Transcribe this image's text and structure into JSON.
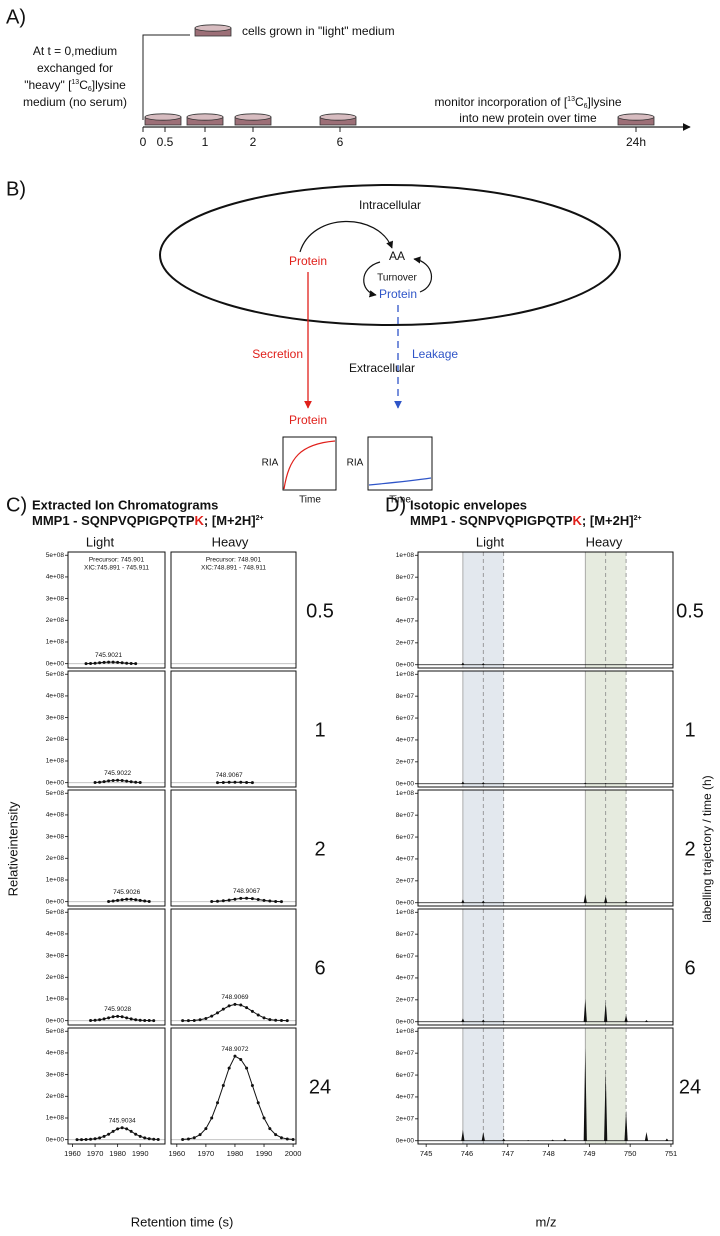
{
  "panel_a": {
    "label": "A)",
    "start_note": [
      "At t = 0,medium",
      "exchanged for"
    ],
    "start_note_heavy": [
      "\"heavy\" [",
      "13",
      "C",
      "6",
      "]lysine"
    ],
    "start_note_end": "medium (no serum)",
    "light_note": "cells grown in \"light\" medium",
    "monitor_note": [
      "monitor incorporation of [",
      "13",
      "C",
      "6",
      "]lysine"
    ],
    "monitor_note_end": "into new protein over time",
    "timepoints": [
      "0",
      "0.5",
      "1",
      "2",
      "6",
      "24h"
    ]
  },
  "panel_b": {
    "label": "B)",
    "intracellular": "Intracellular",
    "extracellular": "Extracellular",
    "protein_intra": "Protein",
    "aa": "AA",
    "turnover": "Turnover",
    "protein_synth": "Protein",
    "protein_extra": "Protein",
    "secretion": "Secretion",
    "leakage": "Leakage",
    "plots": [
      {
        "y": "RIA",
        "x": "Time"
      },
      {
        "y": "RIA",
        "x": "Time"
      }
    ]
  },
  "panel_c": {
    "label": "C)",
    "title": "Extracted Ion Chromatograms",
    "subtitle": [
      "MMP1 - SQNPVQPIGPQTP",
      "K",
      "; [M+2H]",
      "2+"
    ],
    "columns": [
      "Light",
      "Heavy"
    ],
    "rows": [
      "0.5",
      "1",
      "2",
      "6",
      "24"
    ],
    "ylabel": "Relativeintensity",
    "xlabel": "Retention time (s)"
  },
  "panel_d": {
    "label": "D)",
    "title": "Isotopic envelopes",
    "subtitle": [
      "MMP1 - SQNPVQPIGPQTP",
      "K",
      "; [M+2H]",
      "2+"
    ],
    "columns": [
      "Light",
      "Heavy"
    ],
    "rows": [
      "0.5",
      "1",
      "2",
      "6",
      "24"
    ],
    "xlabel": "m/z",
    "right_label": "labelling trajectory / time (h)"
  },
  "chart_data": [
    {
      "type": "line",
      "color": "#111111",
      "xlim": [
        1958,
        2001
      ],
      "ylim": [
        -20000000,
        515000000
      ],
      "yticks": [
        {
          "value": 0,
          "label": "0e+00"
        },
        {
          "value": 100000000,
          "label": "1e+08"
        },
        {
          "value": 200000000,
          "label": "2e+08"
        },
        {
          "value": 300000000,
          "label": "3e+08"
        },
        {
          "value": 400000000,
          "label": "4e+08"
        },
        {
          "value": 500000000,
          "label": "5e+08"
        }
      ],
      "annotations": [
        "Precursor: 745.901",
        "XIC:745.891 - 745.911"
      ],
      "peak_label": "745.9021",
      "x": [
        1966,
        1968,
        1970,
        1972,
        1974,
        1976,
        1978,
        1980,
        1982,
        1984,
        1986,
        1988
      ],
      "values": [
        0,
        1000000,
        2000000,
        4000000,
        6000000,
        7000000,
        7000000,
        6000000,
        4000000,
        2000000,
        1000000,
        0
      ]
    },
    {
      "type": "line",
      "color": "#111111",
      "xlim": [
        1958,
        2001
      ],
      "ylim": [
        -20000000,
        515000000
      ],
      "annotations": [
        "Precursor: 748.901",
        "XIC:748.891 - 748.911"
      ]
    },
    {
      "type": "line",
      "color": "#111111",
      "xlim": [
        1958,
        2001
      ],
      "ylim": [
        -20000000,
        515000000
      ],
      "yticks": [
        {
          "value": 0,
          "label": "0e+00"
        },
        {
          "value": 100000000,
          "label": "1e+08"
        },
        {
          "value": 200000000,
          "label": "2e+08"
        },
        {
          "value": 300000000,
          "label": "3e+08"
        },
        {
          "value": 400000000,
          "label": "4e+08"
        },
        {
          "value": 500000000,
          "label": "5e+08"
        }
      ],
      "peak_label": "745.9022",
      "x": [
        1970,
        1972,
        1974,
        1976,
        1978,
        1980,
        1982,
        1984,
        1986,
        1988,
        1990
      ],
      "values": [
        1000000,
        2000000,
        5000000,
        8000000,
        10000000,
        11000000,
        10000000,
        7000000,
        4000000,
        2000000,
        1000000
      ]
    },
    {
      "type": "line",
      "color": "#111111",
      "xlim": [
        1958,
        2001
      ],
      "ylim": [
        -20000000,
        515000000
      ],
      "peak_label": "748.9067",
      "x": [
        1974,
        1976,
        1978,
        1980,
        1982,
        1984,
        1986
      ],
      "values": [
        0,
        1000000,
        2000000,
        2000000,
        2000000,
        1000000,
        0
      ]
    },
    {
      "type": "line",
      "color": "#111111",
      "xlim": [
        1958,
        2001
      ],
      "ylim": [
        -20000000,
        515000000
      ],
      "yticks": [
        {
          "value": 0,
          "label": "0e+00"
        },
        {
          "value": 100000000,
          "label": "1e+08"
        },
        {
          "value": 200000000,
          "label": "2e+08"
        },
        {
          "value": 300000000,
          "label": "3e+08"
        },
        {
          "value": 400000000,
          "label": "4e+08"
        },
        {
          "value": 500000000,
          "label": "5e+08"
        }
      ],
      "peak_label": "745.9026",
      "x": [
        1976,
        1978,
        1980,
        1982,
        1984,
        1986,
        1988,
        1990,
        1992,
        1994
      ],
      "values": [
        1000000,
        3000000,
        6000000,
        9000000,
        11000000,
        11000000,
        9000000,
        6000000,
        3000000,
        1000000
      ]
    },
    {
      "type": "line",
      "color": "#111111",
      "xlim": [
        1958,
        2001
      ],
      "ylim": [
        -20000000,
        515000000
      ],
      "peak_label": "748.9067",
      "x": [
        1972,
        1974,
        1976,
        1978,
        1980,
        1982,
        1984,
        1986,
        1988,
        1990,
        1992,
        1994,
        1996
      ],
      "values": [
        1000000,
        2000000,
        4000000,
        7000000,
        11000000,
        15000000,
        16000000,
        14000000,
        10000000,
        6000000,
        3000000,
        1000000,
        0
      ]
    },
    {
      "type": "line",
      "color": "#111111",
      "xlim": [
        1958,
        2001
      ],
      "ylim": [
        -20000000,
        515000000
      ],
      "yticks": [
        {
          "value": 0,
          "label": "0e+00"
        },
        {
          "value": 100000000,
          "label": "1e+08"
        },
        {
          "value": 200000000,
          "label": "2e+08"
        },
        {
          "value": 300000000,
          "label": "3e+08"
        },
        {
          "value": 400000000,
          "label": "4e+08"
        },
        {
          "value": 500000000,
          "label": "5e+08"
        }
      ],
      "peak_label": "745.9028",
      "x": [
        1968,
        1970,
        1972,
        1974,
        1976,
        1978,
        1980,
        1982,
        1984,
        1986,
        1988,
        1990,
        1992,
        1994,
        1996
      ],
      "values": [
        1000000,
        2000000,
        4000000,
        8000000,
        13000000,
        18000000,
        20000000,
        18000000,
        13000000,
        8000000,
        4000000,
        2000000,
        1000000,
        500000,
        0
      ]
    },
    {
      "type": "line",
      "color": "#111111",
      "xlim": [
        1958,
        2001
      ],
      "ylim": [
        -20000000,
        515000000
      ],
      "peak_label": "748.9069",
      "x": [
        1962,
        1964,
        1966,
        1968,
        1970,
        1972,
        1974,
        1976,
        1978,
        1980,
        1982,
        1984,
        1986,
        1988,
        1990,
        1992,
        1994,
        1996,
        1998
      ],
      "values": [
        0,
        0,
        1000000,
        4000000,
        10000000,
        21000000,
        36000000,
        53000000,
        68000000,
        75000000,
        72000000,
        60000000,
        43000000,
        26000000,
        13000000,
        5000000,
        2000000,
        1000000,
        0
      ]
    },
    {
      "type": "line",
      "color": "#111111",
      "xlim": [
        1958,
        2001
      ],
      "ylim": [
        -20000000,
        515000000
      ],
      "yticks": [
        {
          "value": 0,
          "label": "0e+00"
        },
        {
          "value": 100000000,
          "label": "1e+08"
        },
        {
          "value": 200000000,
          "label": "2e+08"
        },
        {
          "value": 300000000,
          "label": "3e+08"
        },
        {
          "value": 400000000,
          "label": "4e+08"
        },
        {
          "value": 500000000,
          "label": "5e+08"
        }
      ],
      "xticks": [
        1960,
        1970,
        1980,
        1990
      ],
      "peak_label": "745.9034",
      "x": [
        1962,
        1964,
        1966,
        1968,
        1970,
        1972,
        1974,
        1976,
        1978,
        1980,
        1982,
        1984,
        1986,
        1988,
        1990,
        1992,
        1994,
        1996,
        1998
      ],
      "values": [
        0,
        0,
        1000000,
        2000000,
        4000000,
        8000000,
        15000000,
        25000000,
        38000000,
        50000000,
        55000000,
        50000000,
        38000000,
        25000000,
        15000000,
        8000000,
        4000000,
        2000000,
        1000000
      ]
    },
    {
      "type": "line",
      "color": "#111111",
      "xlim": [
        1958,
        2001
      ],
      "ylim": [
        -20000000,
        515000000
      ],
      "xticks": [
        1960,
        1970,
        1980,
        1990,
        2000
      ],
      "peak_label": "748.9072",
      "x": [
        1962,
        1964,
        1966,
        1968,
        1970,
        1972,
        1974,
        1976,
        1978,
        1980,
        1982,
        1984,
        1986,
        1988,
        1990,
        1992,
        1994,
        1996,
        1998,
        2000
      ],
      "values": [
        1000000,
        3000000,
        9000000,
        23000000,
        51000000,
        100000000,
        170000000,
        250000000,
        330000000,
        385000000,
        370000000,
        330000000,
        250000000,
        170000000,
        100000000,
        51000000,
        23000000,
        9000000,
        3000000,
        1000000
      ]
    },
    {
      "type": "spectrum",
      "color": "#111111",
      "xlim": [
        744.8,
        751.05
      ],
      "ylim": [
        -3000000,
        103000000
      ],
      "yticks": [
        {
          "value": 0,
          "label": "0e+00"
        },
        {
          "value": 20000000,
          "label": "2e+07"
        },
        {
          "value": 40000000,
          "label": "4e+07"
        },
        {
          "value": 60000000,
          "label": "6e+07"
        },
        {
          "value": 80000000,
          "label": "8e+07"
        },
        {
          "value": 100000000,
          "label": "1e+08"
        }
      ],
      "bands": [
        [
          745.9,
          746.9
        ],
        [
          748.9,
          749.9
        ]
      ],
      "band_colors": [
        "#e3e8ee",
        "#e6ebdf"
      ],
      "guides": [
        746.4,
        746.9,
        749.4,
        749.9
      ],
      "x": [
        745.9,
        746.4,
        746.9
      ],
      "values": [
        2000000,
        1500000,
        500000
      ]
    },
    {
      "type": "spectrum",
      "color": "#111111",
      "xlim": [
        744.8,
        751.05
      ],
      "ylim": [
        -3000000,
        103000000
      ],
      "yticks": [
        {
          "value": 0,
          "label": "0e+00"
        },
        {
          "value": 20000000,
          "label": "2e+07"
        },
        {
          "value": 40000000,
          "label": "4e+07"
        },
        {
          "value": 60000000,
          "label": "6e+07"
        },
        {
          "value": 80000000,
          "label": "8e+07"
        },
        {
          "value": 100000000,
          "label": "1e+08"
        }
      ],
      "bands": [
        [
          745.9,
          746.9
        ],
        [
          748.9,
          749.9
        ]
      ],
      "band_colors": [
        "#e3e8ee",
        "#e6ebdf"
      ],
      "guides": [
        746.4,
        746.9,
        749.4,
        749.9
      ],
      "x": [
        745.9,
        746.4,
        746.9,
        748.9,
        749.4
      ],
      "values": [
        2000000,
        1500000,
        500000,
        1000000,
        500000
      ]
    },
    {
      "type": "spectrum",
      "color": "#111111",
      "xlim": [
        744.8,
        751.05
      ],
      "ylim": [
        -3000000,
        103000000
      ],
      "yticks": [
        {
          "value": 0,
          "label": "0e+00"
        },
        {
          "value": 20000000,
          "label": "2e+07"
        },
        {
          "value": 40000000,
          "label": "4e+07"
        },
        {
          "value": 60000000,
          "label": "6e+07"
        },
        {
          "value": 80000000,
          "label": "8e+07"
        },
        {
          "value": 100000000,
          "label": "1e+08"
        }
      ],
      "bands": [
        [
          745.9,
          746.9
        ],
        [
          748.9,
          749.9
        ]
      ],
      "band_colors": [
        "#e3e8ee",
        "#e6ebdf"
      ],
      "guides": [
        746.4,
        746.9,
        749.4,
        749.9
      ],
      "x": [
        745.9,
        746.4,
        746.9,
        748.9,
        749.4,
        749.9
      ],
      "values": [
        3000000,
        2000000,
        500000,
        8000000,
        6000000,
        2000000
      ]
    },
    {
      "type": "spectrum",
      "color": "#111111",
      "xlim": [
        744.8,
        751.05
      ],
      "ylim": [
        -3000000,
        103000000
      ],
      "yticks": [
        {
          "value": 0,
          "label": "0e+00"
        },
        {
          "value": 20000000,
          "label": "2e+07"
        },
        {
          "value": 40000000,
          "label": "4e+07"
        },
        {
          "value": 60000000,
          "label": "6e+07"
        },
        {
          "value": 80000000,
          "label": "8e+07"
        },
        {
          "value": 100000000,
          "label": "1e+08"
        }
      ],
      "bands": [
        [
          745.9,
          746.9
        ],
        [
          748.9,
          749.9
        ]
      ],
      "band_colors": [
        "#e3e8ee",
        "#e6ebdf"
      ],
      "guides": [
        746.4,
        746.9,
        749.4,
        749.9
      ],
      "x": [
        745.9,
        746.4,
        746.9,
        748.9,
        749.4,
        749.9,
        750.4
      ],
      "values": [
        3000000,
        2000000,
        1000000,
        21000000,
        18000000,
        6000000,
        1500000
      ]
    },
    {
      "type": "spectrum",
      "color": "#111111",
      "xlim": [
        744.8,
        751.05
      ],
      "ylim": [
        -3000000,
        103000000
      ],
      "yticks": [
        {
          "value": 0,
          "label": "0e+00"
        },
        {
          "value": 20000000,
          "label": "2e+07"
        },
        {
          "value": 40000000,
          "label": "4e+07"
        },
        {
          "value": 60000000,
          "label": "6e+07"
        },
        {
          "value": 80000000,
          "label": "8e+07"
        },
        {
          "value": 100000000,
          "label": "1e+08"
        }
      ],
      "xticks": [
        745,
        746,
        747,
        748,
        749,
        750,
        751
      ],
      "bands": [
        [
          745.9,
          746.9
        ],
        [
          748.9,
          749.9
        ]
      ],
      "band_colors": [
        "#e3e8ee",
        "#e6ebdf"
      ],
      "guides": [
        746.4,
        746.9,
        749.4,
        749.9
      ],
      "x": [
        745.9,
        746.4,
        746.9,
        747.5,
        748.1,
        748.4,
        748.9,
        749.4,
        749.9,
        750.4,
        750.9
      ],
      "values": [
        10000000,
        8000000,
        2000000,
        500000,
        1000000,
        2000000,
        85000000,
        65000000,
        28000000,
        8000000,
        2000000
      ]
    }
  ]
}
